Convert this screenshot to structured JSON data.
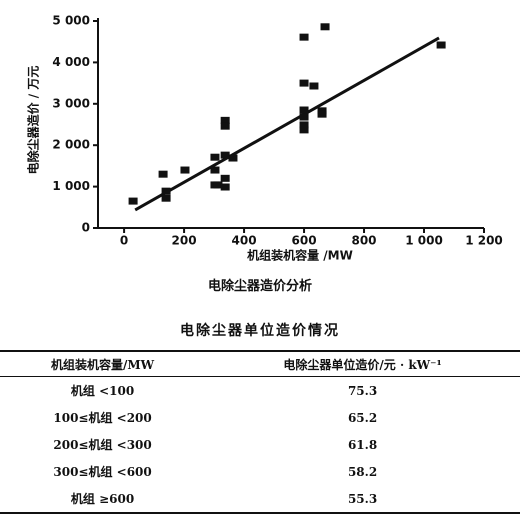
{
  "chart_data": {
    "type": "scatter",
    "xlabel": "机组装机容量 /MW",
    "ylabel": "电除尘器造价 / 万元",
    "xlim": [
      -87,
      1200
    ],
    "ylim": [
      0,
      5000
    ],
    "xticks": [
      0,
      200,
      400,
      600,
      800,
      {
        "value": 1000,
        "label": "1 000"
      },
      {
        "value": 1200,
        "label": "1 200"
      }
    ],
    "yticks": [
      0,
      {
        "value": 1000,
        "label": "1 000"
      },
      {
        "value": 2000,
        "label": "2 000"
      },
      {
        "value": 3000,
        "label": "3 000"
      },
      {
        "value": 4000,
        "label": "4 000"
      },
      {
        "value": 5000,
        "label": "5 000"
      }
    ],
    "color": "#111111",
    "x": [
      30,
      130,
      140,
      140,
      203,
      303,
      303,
      303,
      313,
      337,
      337,
      337,
      337,
      337,
      363,
      600,
      600,
      633,
      600,
      600,
      600,
      600,
      660,
      660,
      670,
      1057
    ],
    "values": [
      650,
      1300,
      890,
      720,
      1400,
      1710,
      1400,
      1040,
      1040,
      1760,
      1200,
      990,
      2600,
      2460,
      1690,
      4610,
      3500,
      3430,
      2850,
      2680,
      2490,
      2370,
      2830,
      2750,
      4860,
      4420
    ],
    "trend": {
      "x": [
        37,
        1050
      ],
      "values": [
        435,
        4590
      ]
    }
  },
  "caption": "电除尘器造价分析",
  "table": {
    "title": "电除尘器单位造价情况",
    "header": [
      "机组装机容量/MW",
      "电除尘器单位造价/元 · kW⁻¹"
    ],
    "rows": [
      [
        "机组 <100",
        "75.3"
      ],
      [
        "100≤机组 <200",
        "65.2"
      ],
      [
        "200≤机组 <300",
        "61.8"
      ],
      [
        "300≤机组 <600",
        "58.2"
      ],
      [
        "机组 ≥600",
        "55.3"
      ]
    ]
  }
}
